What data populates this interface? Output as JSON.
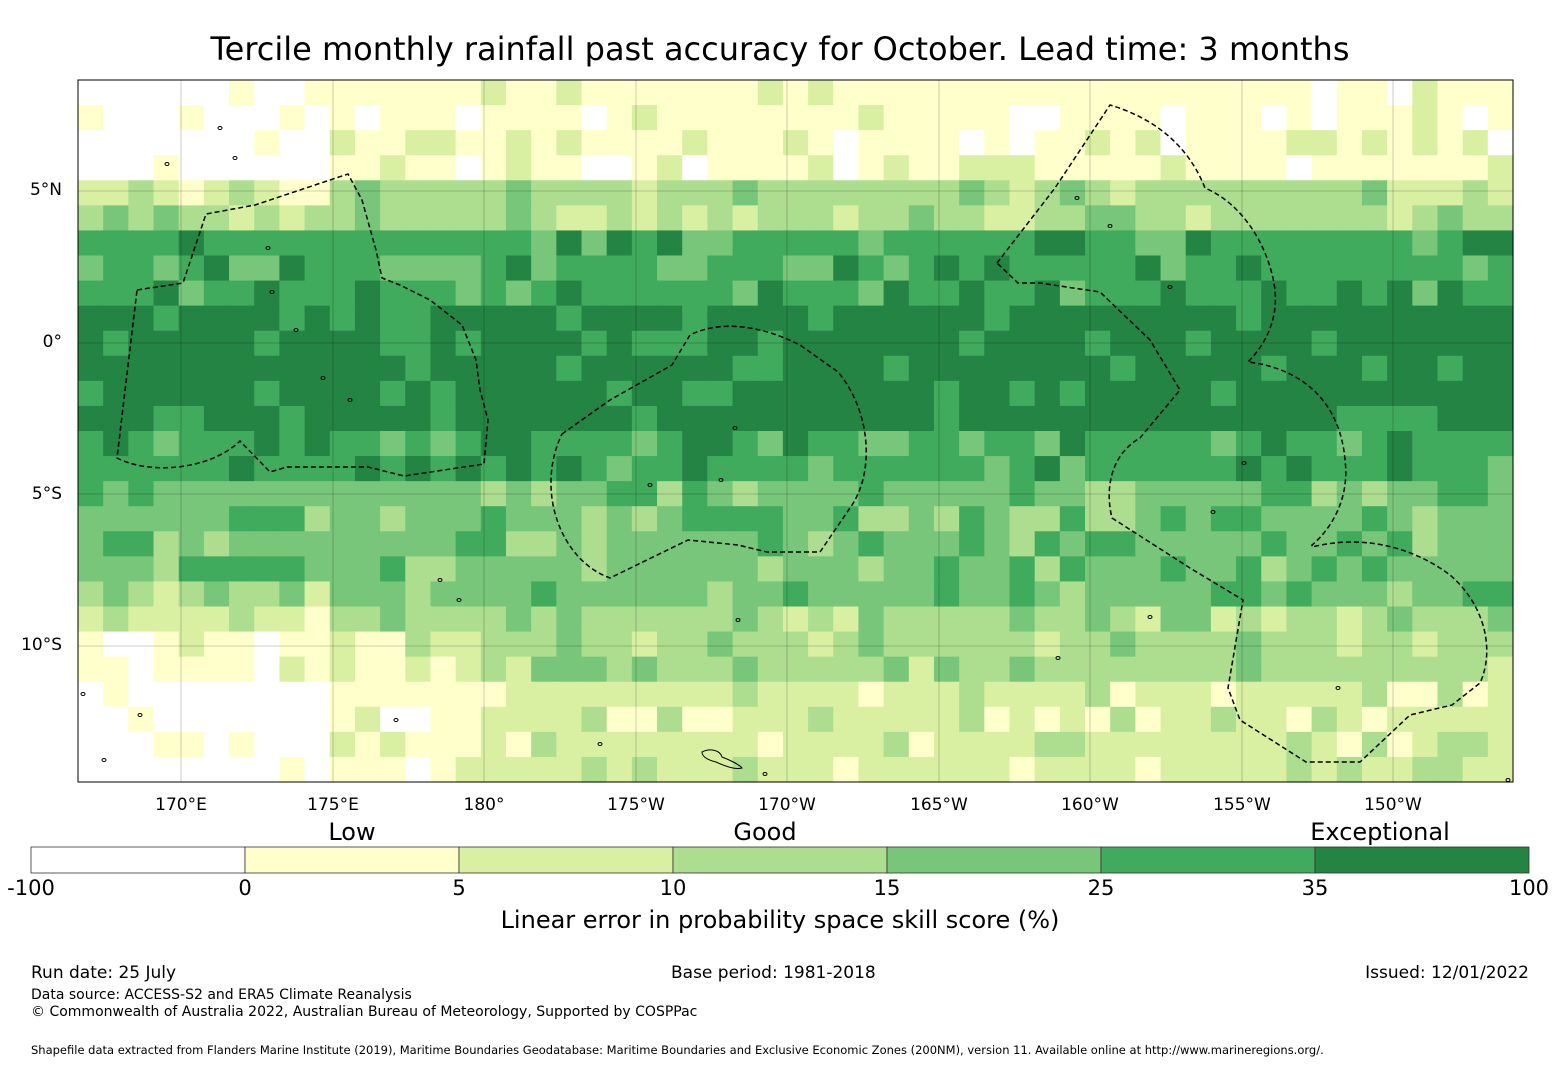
{
  "title": "Tercile monthly rainfall past accuracy for October. Lead time: 3 months",
  "map": {
    "lon_labels": [
      "170°E",
      "175°E",
      "180°",
      "175°W",
      "170°W",
      "165°W",
      "160°W",
      "155°W",
      "150°W"
    ],
    "lat_labels": [
      "5°N",
      "0°",
      "5°S",
      "10°S"
    ],
    "bands": [
      {
        "rows": [
          0,
          4
        ],
        "base": 1
      },
      {
        "rows": [
          4,
          6
        ],
        "base": 3
      },
      {
        "rows": [
          6,
          9
        ],
        "base": 5
      },
      {
        "rows": [
          9,
          11
        ],
        "base": 6
      },
      {
        "rows": [
          11,
          14
        ],
        "base": 6
      },
      {
        "rows": [
          14,
          16
        ],
        "base": 5
      },
      {
        "rows": [
          16,
          19
        ],
        "base": 4
      },
      {
        "rows": [
          19,
          21
        ],
        "base": 4
      },
      {
        "rows": [
          21,
          24
        ],
        "base": 3
      },
      {
        "rows": [
          24,
          28
        ],
        "base": 2
      }
    ]
  },
  "legend": {
    "category_labels": [
      "Low",
      "Good",
      "Exceptional"
    ],
    "bin_colors": [
      "#ffffff",
      "#ffffcc",
      "#d9f0a3",
      "#addd8e",
      "#78c679",
      "#41ab5d",
      "#238443"
    ],
    "tick_labels": [
      "-100",
      "0",
      "5",
      "10",
      "15",
      "25",
      "35",
      "100"
    ],
    "title": "Linear error in probability space skill score (%)"
  },
  "footer": {
    "run_date": "Run date: 25 July",
    "base_period": "Base period: 1981-2018",
    "issued": "Issued: 12/01/2022",
    "data_source": "Data source: ACCESS-S2 and ERA5 Climate Reanalysis",
    "copyright": "© Commonwealth of Australia 2022, Australian Bureau of Meteorology, Supported by COSPPac",
    "shapefile": "Shapefile data extracted from Flanders Marine Institute (2019), Maritime Boundaries Geodatabase: Maritime Boundaries and Exclusive Economic Zones (200NM), version 11. Available online at http://www.marineregions.org/."
  }
}
